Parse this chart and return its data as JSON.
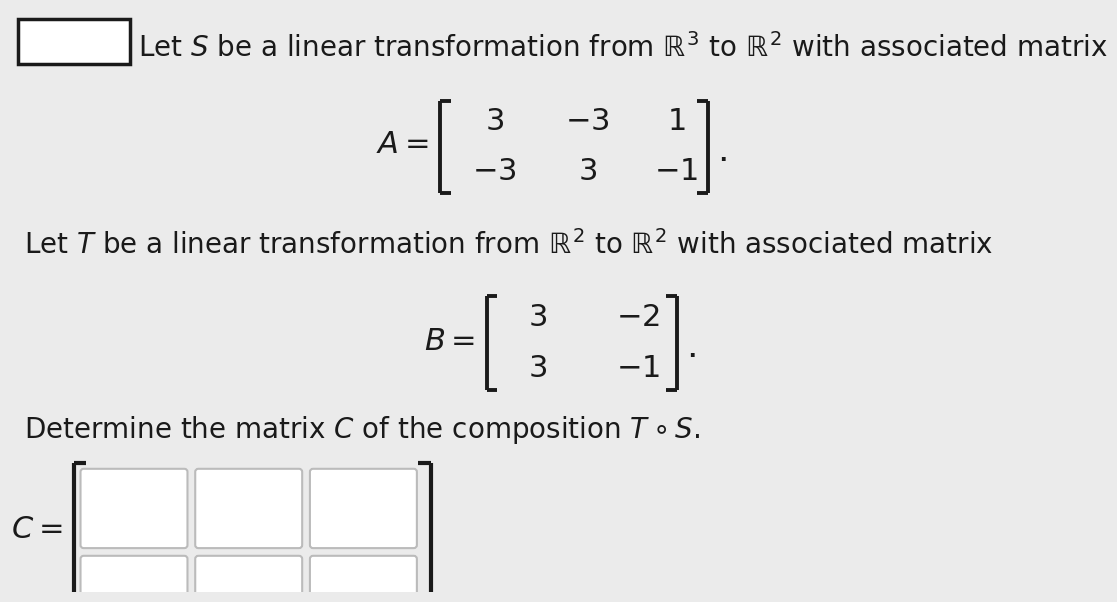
{
  "bg_color": "#ebebeb",
  "text_color": "#1a1a1a",
  "line1": "Let $S$ be a linear transformation from $\\mathbb{R}^3$ to $\\mathbb{R}^2$ with associated matrix",
  "line2": "Let $T$ be a linear transformation from $\\mathbb{R}^2$ to $\\mathbb{R}^2$ with associated matrix",
  "line3": "Determine the matrix $C$ of the composition $T \\circ S$.",
  "A_matrix": [
    [
      3,
      -3,
      1
    ],
    [
      -3,
      3,
      -1
    ]
  ],
  "B_matrix": [
    [
      3,
      -2
    ],
    [
      3,
      -1
    ]
  ],
  "font_size_main": 20,
  "font_size_matrix": 22,
  "box_edge_color": "#bbbbbb",
  "box_face_color": "#ffffff",
  "bracket_color": "#1a1a1a"
}
